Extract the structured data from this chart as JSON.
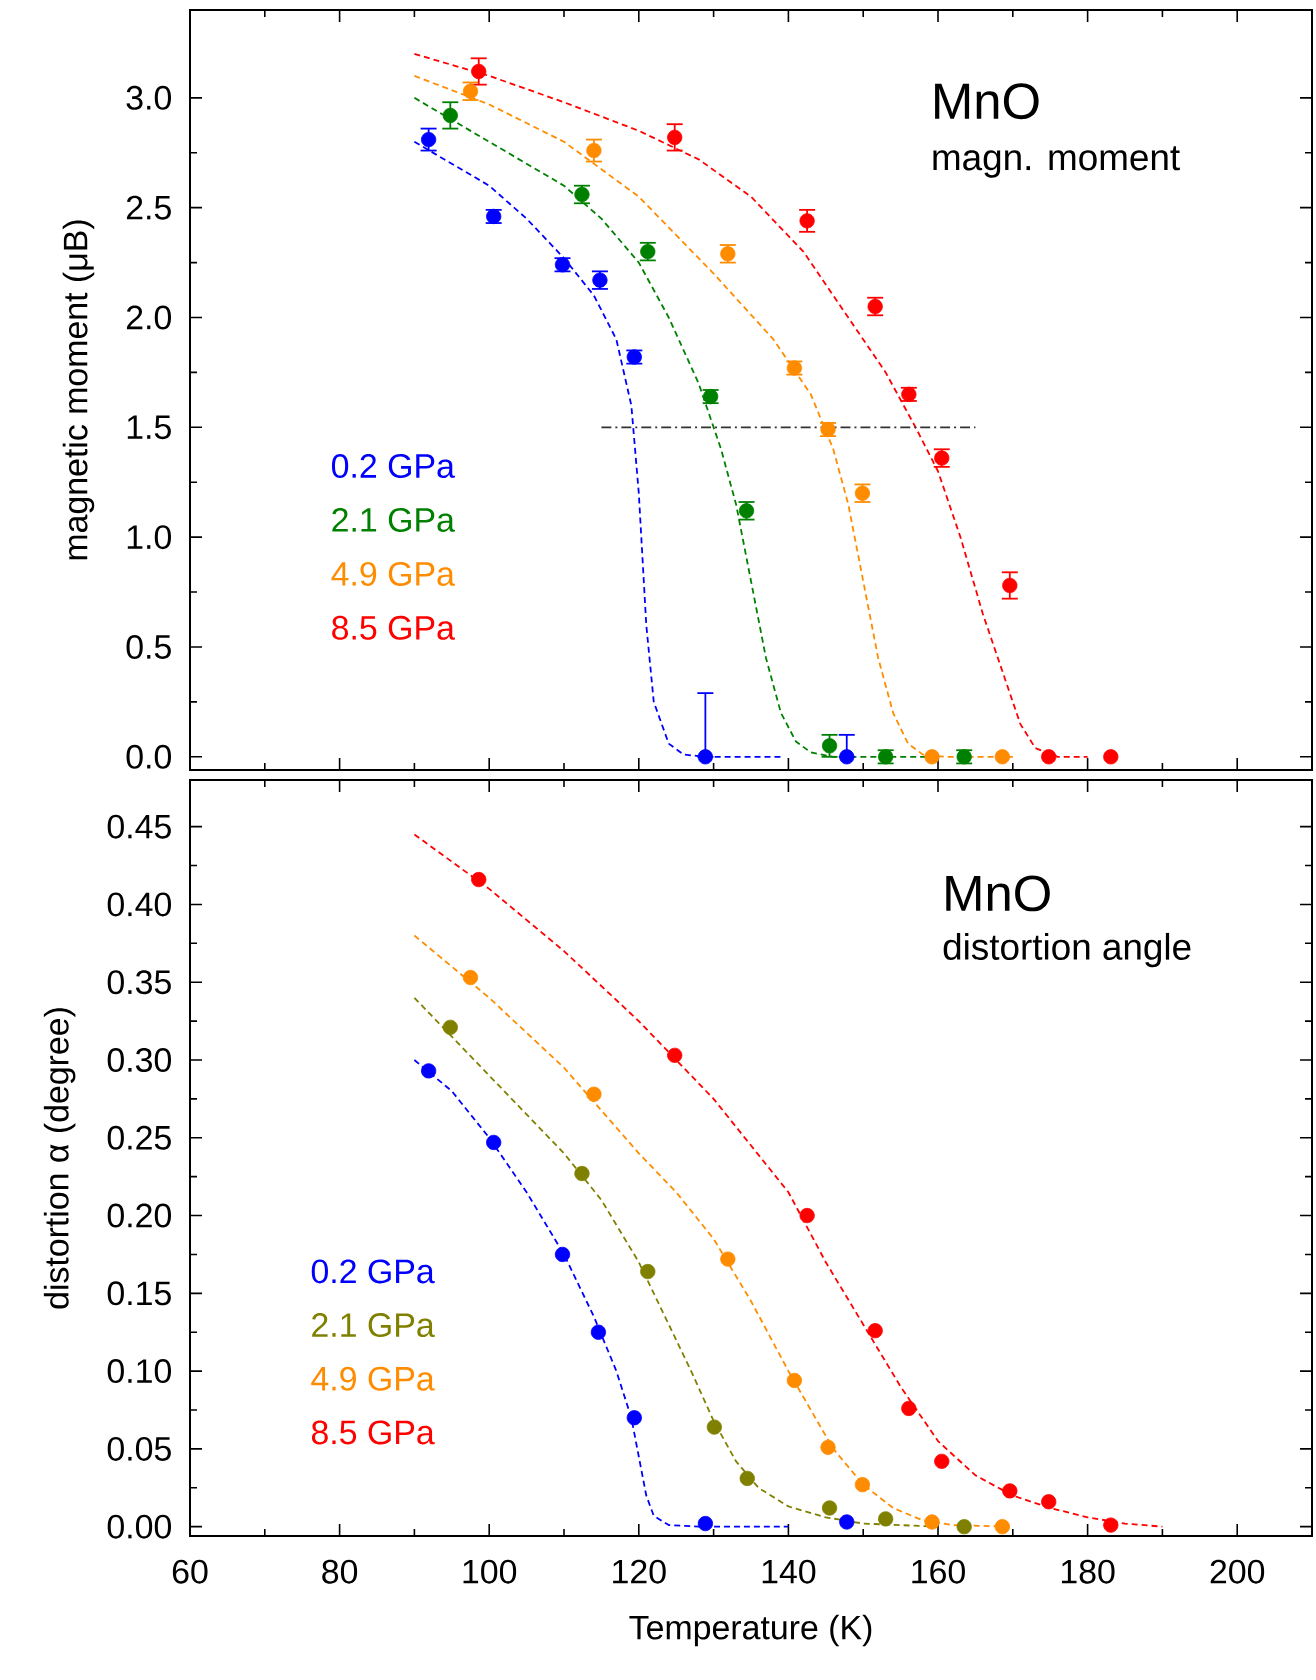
{
  "chart_data": [
    {
      "type": "scatter",
      "title": "MnO",
      "subtitle": "magn. moment",
      "ylabel": "magnetic moment  (μB)",
      "xlim": [
        60,
        210
      ],
      "ylim": [
        -0.06,
        3.4
      ],
      "xticks": [
        60,
        80,
        100,
        120,
        140,
        160,
        180,
        200
      ],
      "yticks": [
        {
          "value": 0,
          "label": "0.0"
        },
        {
          "value": 0.5,
          "label": "0.5"
        },
        {
          "value": 1,
          "label": "1.0"
        },
        {
          "value": 1.5,
          "label": "1.5"
        },
        {
          "value": 2,
          "label": "2.0"
        },
        {
          "value": 2.5,
          "label": "2.5"
        },
        {
          "value": 3,
          "label": "3.0"
        }
      ],
      "tick_labels": "y",
      "legend": "left",
      "series": [
        {
          "type": "line",
          "marker": "none",
          "line_style": "dashed",
          "color": "#0000ff",
          "x": [
            90,
            100,
            105,
            110,
            114,
            117,
            119,
            120,
            121,
            122,
            124,
            126,
            129,
            139
          ],
          "values": [
            2.8,
            2.6,
            2.45,
            2.27,
            2.1,
            1.9,
            1.6,
            1.2,
            0.6,
            0.25,
            0.06,
            0.01,
            0,
            0
          ]
        },
        {
          "type": "line",
          "marker": "none",
          "line_style": "dashed",
          "color": "#008000",
          "x": [
            90,
            100,
            110,
            115,
            120,
            124,
            128,
            131,
            133,
            135,
            137,
            139,
            141,
            143,
            146,
            160
          ],
          "values": [
            3.0,
            2.8,
            2.6,
            2.45,
            2.25,
            2.0,
            1.7,
            1.4,
            1.15,
            0.8,
            0.45,
            0.2,
            0.07,
            0.02,
            0,
            0
          ]
        },
        {
          "type": "line",
          "marker": "none",
          "line_style": "dashed",
          "color": "#ff8c00",
          "x": [
            90,
            100,
            110,
            120,
            130,
            138,
            143,
            146,
            148,
            150,
            152,
            154,
            156,
            158,
            161,
            170
          ],
          "values": [
            3.1,
            2.97,
            2.8,
            2.55,
            2.2,
            1.9,
            1.65,
            1.4,
            1.15,
            0.8,
            0.45,
            0.2,
            0.06,
            0.01,
            0,
            0
          ]
        },
        {
          "type": "line",
          "marker": "none",
          "line_style": "dashed",
          "color": "#ff0000",
          "x": [
            90,
            100,
            110,
            120,
            128,
            135,
            142,
            148,
            153,
            157,
            160,
            163,
            166,
            169,
            171,
            173,
            176,
            180
          ],
          "values": [
            3.2,
            3.1,
            2.98,
            2.85,
            2.72,
            2.55,
            2.3,
            2.0,
            1.75,
            1.5,
            1.3,
            1.0,
            0.65,
            0.35,
            0.15,
            0.04,
            0,
            0
          ]
        },
        {
          "type": "line",
          "marker": "none",
          "line_style": "dashdot",
          "color": "#333333",
          "x": [
            115,
            165
          ],
          "values": [
            1.5,
            1.5
          ]
        },
        {
          "name": "0.2 GPa",
          "marker": "circle",
          "color": "#0000ff",
          "x": [
            91.9,
            100.6,
            109.8,
            114.8,
            119.4,
            128.9,
            147.8
          ],
          "values": [
            2.81,
            2.46,
            2.24,
            2.17,
            1.82,
            0,
            0
          ],
          "errors": [
            0.05,
            0.03,
            0.03,
            0.04,
            0.03,
            [
              0,
              0.29
            ],
            [
              0,
              0.1
            ]
          ]
        },
        {
          "name": "2.1 GPa",
          "marker": "circle",
          "color": "#008000",
          "x": [
            94.8,
            112.4,
            121.2,
            129.6,
            134.4,
            145.5,
            153.0,
            163.5
          ],
          "values": [
            2.92,
            2.56,
            2.3,
            1.64,
            1.12,
            0.05,
            0,
            0
          ],
          "errors": [
            0.06,
            0.04,
            0.04,
            0.03,
            0.04,
            0.05,
            0.03,
            0.03
          ]
        },
        {
          "name": "4.9 GPa",
          "marker": "circle",
          "color": "#ff8c00",
          "x": [
            97.5,
            114.0,
            131.9,
            140.8,
            145.3,
            149.9,
            159.2,
            168.6
          ],
          "values": [
            3.03,
            2.76,
            2.29,
            1.77,
            1.49,
            1.2,
            0,
            0
          ],
          "errors": [
            0.04,
            0.05,
            0.04,
            0.03,
            0.03,
            0.04,
            null,
            null
          ]
        },
        {
          "name": "8.5 GPa",
          "marker": "circle",
          "color": "#ff0000",
          "x": [
            98.6,
            124.8,
            142.5,
            151.6,
            156.1,
            160.5,
            169.6,
            174.8,
            183.1
          ],
          "values": [
            3.12,
            2.82,
            2.44,
            2.05,
            1.65,
            1.36,
            0.78,
            0,
            0
          ],
          "errors": [
            0.06,
            0.06,
            0.05,
            0.04,
            0.03,
            0.04,
            0.06,
            null,
            null
          ]
        }
      ]
    },
    {
      "type": "scatter",
      "title": "MnO",
      "subtitle": "distortion angle",
      "xlabel": "Temperature (K)",
      "ylabel": "distortion  α (degree)",
      "xlim": [
        60,
        210
      ],
      "ylim": [
        -0.006,
        0.48
      ],
      "xticks": [
        60,
        80,
        100,
        120,
        140,
        160,
        180,
        200
      ],
      "yticks": [
        {
          "value": 0,
          "label": "0.00"
        },
        {
          "value": 0.05,
          "label": "0.05"
        },
        {
          "value": 0.1,
          "label": "0.10"
        },
        {
          "value": 0.15,
          "label": "0.15"
        },
        {
          "value": 0.2,
          "label": "0.20"
        },
        {
          "value": 0.25,
          "label": "0.25"
        },
        {
          "value": 0.3,
          "label": "0.30"
        },
        {
          "value": 0.35,
          "label": "0.35"
        },
        {
          "value": 0.4,
          "label": "0.40"
        },
        {
          "value": 0.45,
          "label": "0.45"
        }
      ],
      "legend": "left",
      "series": [
        {
          "type": "line",
          "marker": "none",
          "line_style": "dashed",
          "color": "#0000ff",
          "x": [
            90,
            95,
            100,
            105,
            110,
            114,
            117,
            119,
            120,
            121,
            122,
            124,
            128,
            140
          ],
          "values": [
            0.3,
            0.28,
            0.25,
            0.215,
            0.175,
            0.135,
            0.1,
            0.07,
            0.045,
            0.02,
            0.007,
            0.001,
            0,
            0
          ]
        },
        {
          "type": "line",
          "marker": "none",
          "line_style": "dashed",
          "color": "#808000",
          "x": [
            90,
            100,
            110,
            115,
            120,
            124,
            127,
            130,
            133,
            136,
            140,
            145,
            150,
            160
          ],
          "values": [
            0.34,
            0.29,
            0.24,
            0.21,
            0.17,
            0.13,
            0.1,
            0.068,
            0.042,
            0.025,
            0.013,
            0.006,
            0.002,
            0
          ]
        },
        {
          "type": "line",
          "marker": "none",
          "line_style": "dashed",
          "color": "#ff8c00",
          "x": [
            90,
            100,
            110,
            120,
            125,
            130,
            135,
            140,
            143,
            146,
            150,
            154,
            158,
            162,
            170
          ],
          "values": [
            0.38,
            0.34,
            0.295,
            0.24,
            0.215,
            0.185,
            0.145,
            0.1,
            0.075,
            0.05,
            0.027,
            0.012,
            0.004,
            0.001,
            0
          ]
        },
        {
          "type": "line",
          "marker": "none",
          "line_style": "dashed",
          "color": "#ff0000",
          "x": [
            90,
            100,
            110,
            120,
            130,
            135,
            140,
            145,
            150,
            155,
            160,
            165,
            170,
            175,
            180,
            185,
            190
          ],
          "values": [
            0.445,
            0.41,
            0.37,
            0.325,
            0.275,
            0.245,
            0.215,
            0.17,
            0.13,
            0.09,
            0.055,
            0.033,
            0.02,
            0.012,
            0.006,
            0.002,
            0
          ]
        },
        {
          "name": "0.2 GPa",
          "marker": "circle",
          "color": "#0000ff",
          "x": [
            91.9,
            100.6,
            109.8,
            114.6,
            119.4,
            128.9,
            147.8
          ],
          "values": [
            0.293,
            0.247,
            0.175,
            0.125,
            0.07,
            0.002,
            0.003
          ]
        },
        {
          "name": "2.1 GPa",
          "marker": "circle",
          "color": "#808000",
          "x": [
            94.8,
            112.4,
            121.2,
            130.1,
            134.5,
            145.5,
            153.0,
            163.5
          ],
          "values": [
            0.321,
            0.227,
            0.164,
            0.064,
            0.031,
            0.012,
            0.005,
            0
          ]
        },
        {
          "name": "4.9 GPa",
          "marker": "circle",
          "color": "#ff8c00",
          "x": [
            97.5,
            114.0,
            131.9,
            140.8,
            145.3,
            149.9,
            159.2,
            168.6
          ],
          "values": [
            0.353,
            0.278,
            0.172,
            0.094,
            0.051,
            0.027,
            0.003,
            0
          ]
        },
        {
          "name": "8.5 GPa",
          "marker": "circle",
          "color": "#ff0000",
          "x": [
            98.6,
            124.8,
            142.5,
            151.6,
            156.1,
            160.5,
            169.6,
            174.8,
            183.1
          ],
          "values": [
            0.416,
            0.303,
            0.2,
            0.126,
            0.076,
            0.042,
            0.023,
            0.016,
            0.001
          ]
        }
      ]
    }
  ]
}
